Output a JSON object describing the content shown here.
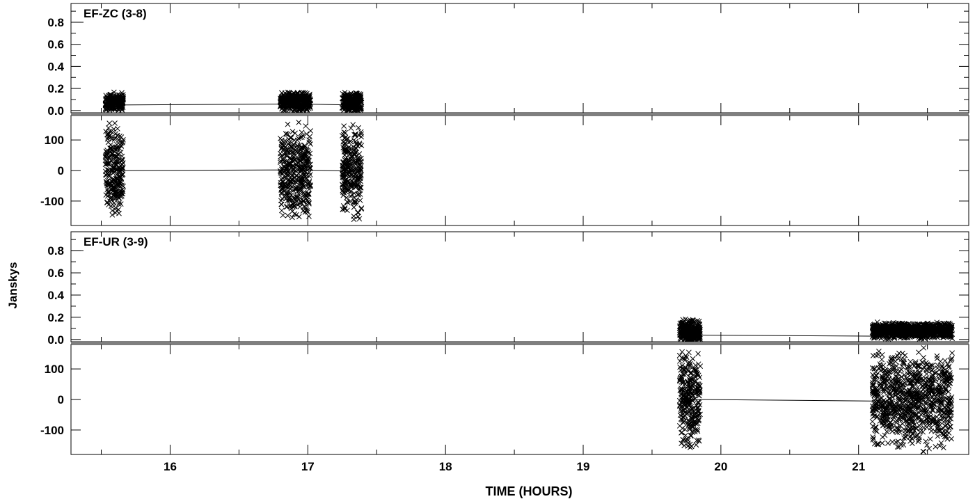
{
  "ylabel": "Janskys",
  "xlabel": "TIME (HOURS)",
  "x_ticks": [
    "16",
    "17",
    "18",
    "19",
    "20",
    "21"
  ],
  "chart_data": [
    {
      "type": "scatter",
      "title": "EF-ZC (3-8)",
      "xlim": [
        15.28,
        21.8
      ],
      "amplitude": {
        "ylim": [
          -0.02,
          0.97
        ],
        "y_ticks": [
          "0.0",
          "0.2",
          "0.4",
          "0.6",
          "0.8"
        ],
        "scans": [
          {
            "x_range": [
              15.53,
              15.66
            ],
            "y_mean": 0.08,
            "y_spread": 0.09
          },
          {
            "x_range": [
              16.8,
              17.02
            ],
            "y_mean": 0.08,
            "y_spread": 0.1
          },
          {
            "x_range": [
              17.25,
              17.39
            ],
            "y_mean": 0.07,
            "y_spread": 0.1
          }
        ],
        "mean_line": [
          [
            15.6,
            0.05
          ],
          [
            16.93,
            0.06
          ],
          [
            17.32,
            0.05
          ]
        ]
      },
      "phase": {
        "ylim": [
          -180,
          180
        ],
        "y_ticks": [
          "-100",
          "0",
          "100"
        ],
        "scans": [
          {
            "x_range": [
              15.53,
              15.66
            ],
            "y_mean": 0,
            "y_spread": 170
          },
          {
            "x_range": [
              16.8,
              17.02
            ],
            "y_mean": 0,
            "y_spread": 170
          },
          {
            "x_range": [
              17.25,
              17.39
            ],
            "y_mean": 0,
            "y_spread": 170
          }
        ],
        "mean_line": [
          [
            15.6,
            0
          ],
          [
            16.93,
            2
          ],
          [
            17.32,
            -2
          ]
        ]
      }
    },
    {
      "type": "scatter",
      "title": "EF-UR (3-9)",
      "xlim": [
        15.28,
        21.8
      ],
      "amplitude": {
        "ylim": [
          -0.02,
          0.97
        ],
        "y_ticks": [
          "0.0",
          "0.2",
          "0.4",
          "0.6",
          "0.8"
        ],
        "scans": [
          {
            "x_range": [
              19.7,
              19.85
            ],
            "y_mean": 0.07,
            "y_spread": 0.12
          },
          {
            "x_range": [
              21.1,
              21.68
            ],
            "y_mean": 0.08,
            "y_spread": 0.08
          }
        ],
        "mean_line": [
          [
            19.8,
            0.04
          ],
          [
            21.1,
            0.03
          ]
        ]
      },
      "phase": {
        "ylim": [
          -180,
          180
        ],
        "y_ticks": [
          "-100",
          "0",
          "100"
        ],
        "scans": [
          {
            "x_range": [
              19.7,
              19.85
            ],
            "y_mean": 0,
            "y_spread": 175
          },
          {
            "x_range": [
              21.1,
              21.68
            ],
            "y_mean": 0,
            "y_spread": 175
          }
        ],
        "mean_line": [
          [
            19.8,
            0
          ],
          [
            21.1,
            -5
          ]
        ]
      }
    }
  ]
}
